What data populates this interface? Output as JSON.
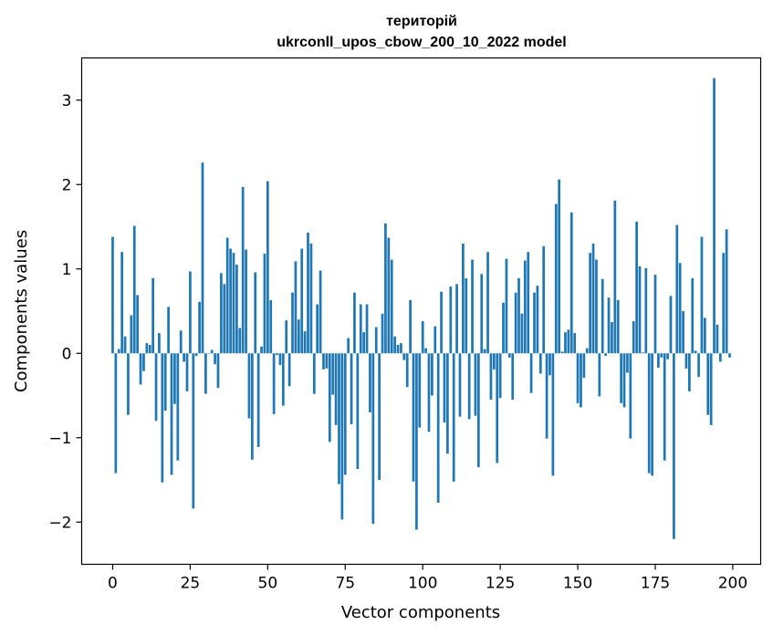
{
  "chart_data": {
    "type": "bar",
    "title_line1": "територій",
    "title_line2": "ukrconll_upos_cbow_200_10_2022 model",
    "xlabel": "Vector components",
    "ylabel": "Components values",
    "xlim": [
      -10,
      209
    ],
    "ylim": [
      -2.5,
      3.5
    ],
    "xticks": [
      0,
      25,
      50,
      75,
      100,
      125,
      150,
      175,
      200
    ],
    "xtick_labels": [
      "0",
      "25",
      "50",
      "75",
      "100",
      "125",
      "150",
      "175",
      "200"
    ],
    "yticks": [
      -2,
      -1,
      0,
      1,
      2,
      3
    ],
    "ytick_labels": [
      "−2",
      "−1",
      "0",
      "1",
      "2",
      "3"
    ],
    "bar_color": "#1f77b4",
    "values": [
      1.38,
      -1.42,
      0.05,
      1.2,
      0.2,
      -0.73,
      0.45,
      1.51,
      0.69,
      -0.37,
      -0.21,
      0.12,
      0.1,
      0.89,
      -0.8,
      0.24,
      -1.53,
      -0.68,
      0.55,
      -1.44,
      -0.6,
      -1.27,
      0.27,
      -0.1,
      -0.45,
      0.97,
      -1.84,
      -0.03,
      0.61,
      2.26,
      -0.48,
      0.0,
      0.04,
      -0.13,
      -0.41,
      0.95,
      0.82,
      1.37,
      1.24,
      1.19,
      1.05,
      0.3,
      1.97,
      1.23,
      -0.77,
      -1.26,
      0.96,
      -1.11,
      0.08,
      1.18,
      2.04,
      0.63,
      -0.72,
      -0.02,
      -0.14,
      -0.62,
      0.39,
      -0.39,
      0.72,
      1.09,
      0.4,
      1.24,
      0.26,
      1.43,
      1.3,
      -0.48,
      0.58,
      0.98,
      -0.19,
      -0.18,
      -1.05,
      -0.49,
      -0.85,
      -1.55,
      -1.97,
      -1.44,
      0.18,
      -0.84,
      0.72,
      -1.37,
      0.58,
      0.25,
      0.58,
      -0.7,
      -2.02,
      0.31,
      -1.5,
      0.47,
      1.54,
      1.37,
      1.11,
      0.2,
      0.1,
      0.12,
      -0.08,
      -0.4,
      0.63,
      -1.52,
      -2.09,
      -0.88,
      0.38,
      0.06,
      -0.93,
      -0.5,
      0.32,
      -1.77,
      0.73,
      -0.82,
      -1.19,
      0.79,
      -1.52,
      0.82,
      -0.75,
      1.3,
      0.89,
      -0.78,
      1.11,
      -0.74,
      -1.35,
      0.94,
      0.05,
      1.2,
      -0.55,
      -0.19,
      -1.3,
      -0.53,
      0.6,
      1.12,
      -0.05,
      -0.55,
      0.72,
      0.89,
      0.47,
      1.1,
      1.2,
      -0.47,
      0.72,
      0.8,
      -0.24,
      1.27,
      -1.01,
      -0.26,
      -1.45,
      1.77,
      2.06,
      0.02,
      0.25,
      0.28,
      1.67,
      0.24,
      -0.59,
      -0.64,
      -0.29,
      0.06,
      1.19,
      1.3,
      1.11,
      -0.51,
      0.88,
      -0.03,
      0.66,
      0.37,
      1.81,
      0.63,
      -0.59,
      -0.64,
      -0.23,
      -1.01,
      0.38,
      1.56,
      1.03,
      0.01,
      1.01,
      -1.42,
      -1.45,
      0.93,
      -0.17,
      -0.05,
      -1.27,
      -0.07,
      0.68,
      -2.2,
      1.52,
      1.07,
      0.5,
      -0.18,
      -0.45,
      0.89,
      0.03,
      -0.28,
      1.38,
      0.42,
      -0.73,
      -0.85,
      3.26,
      0.34,
      -0.1,
      1.19,
      1.47,
      -0.05
    ]
  }
}
